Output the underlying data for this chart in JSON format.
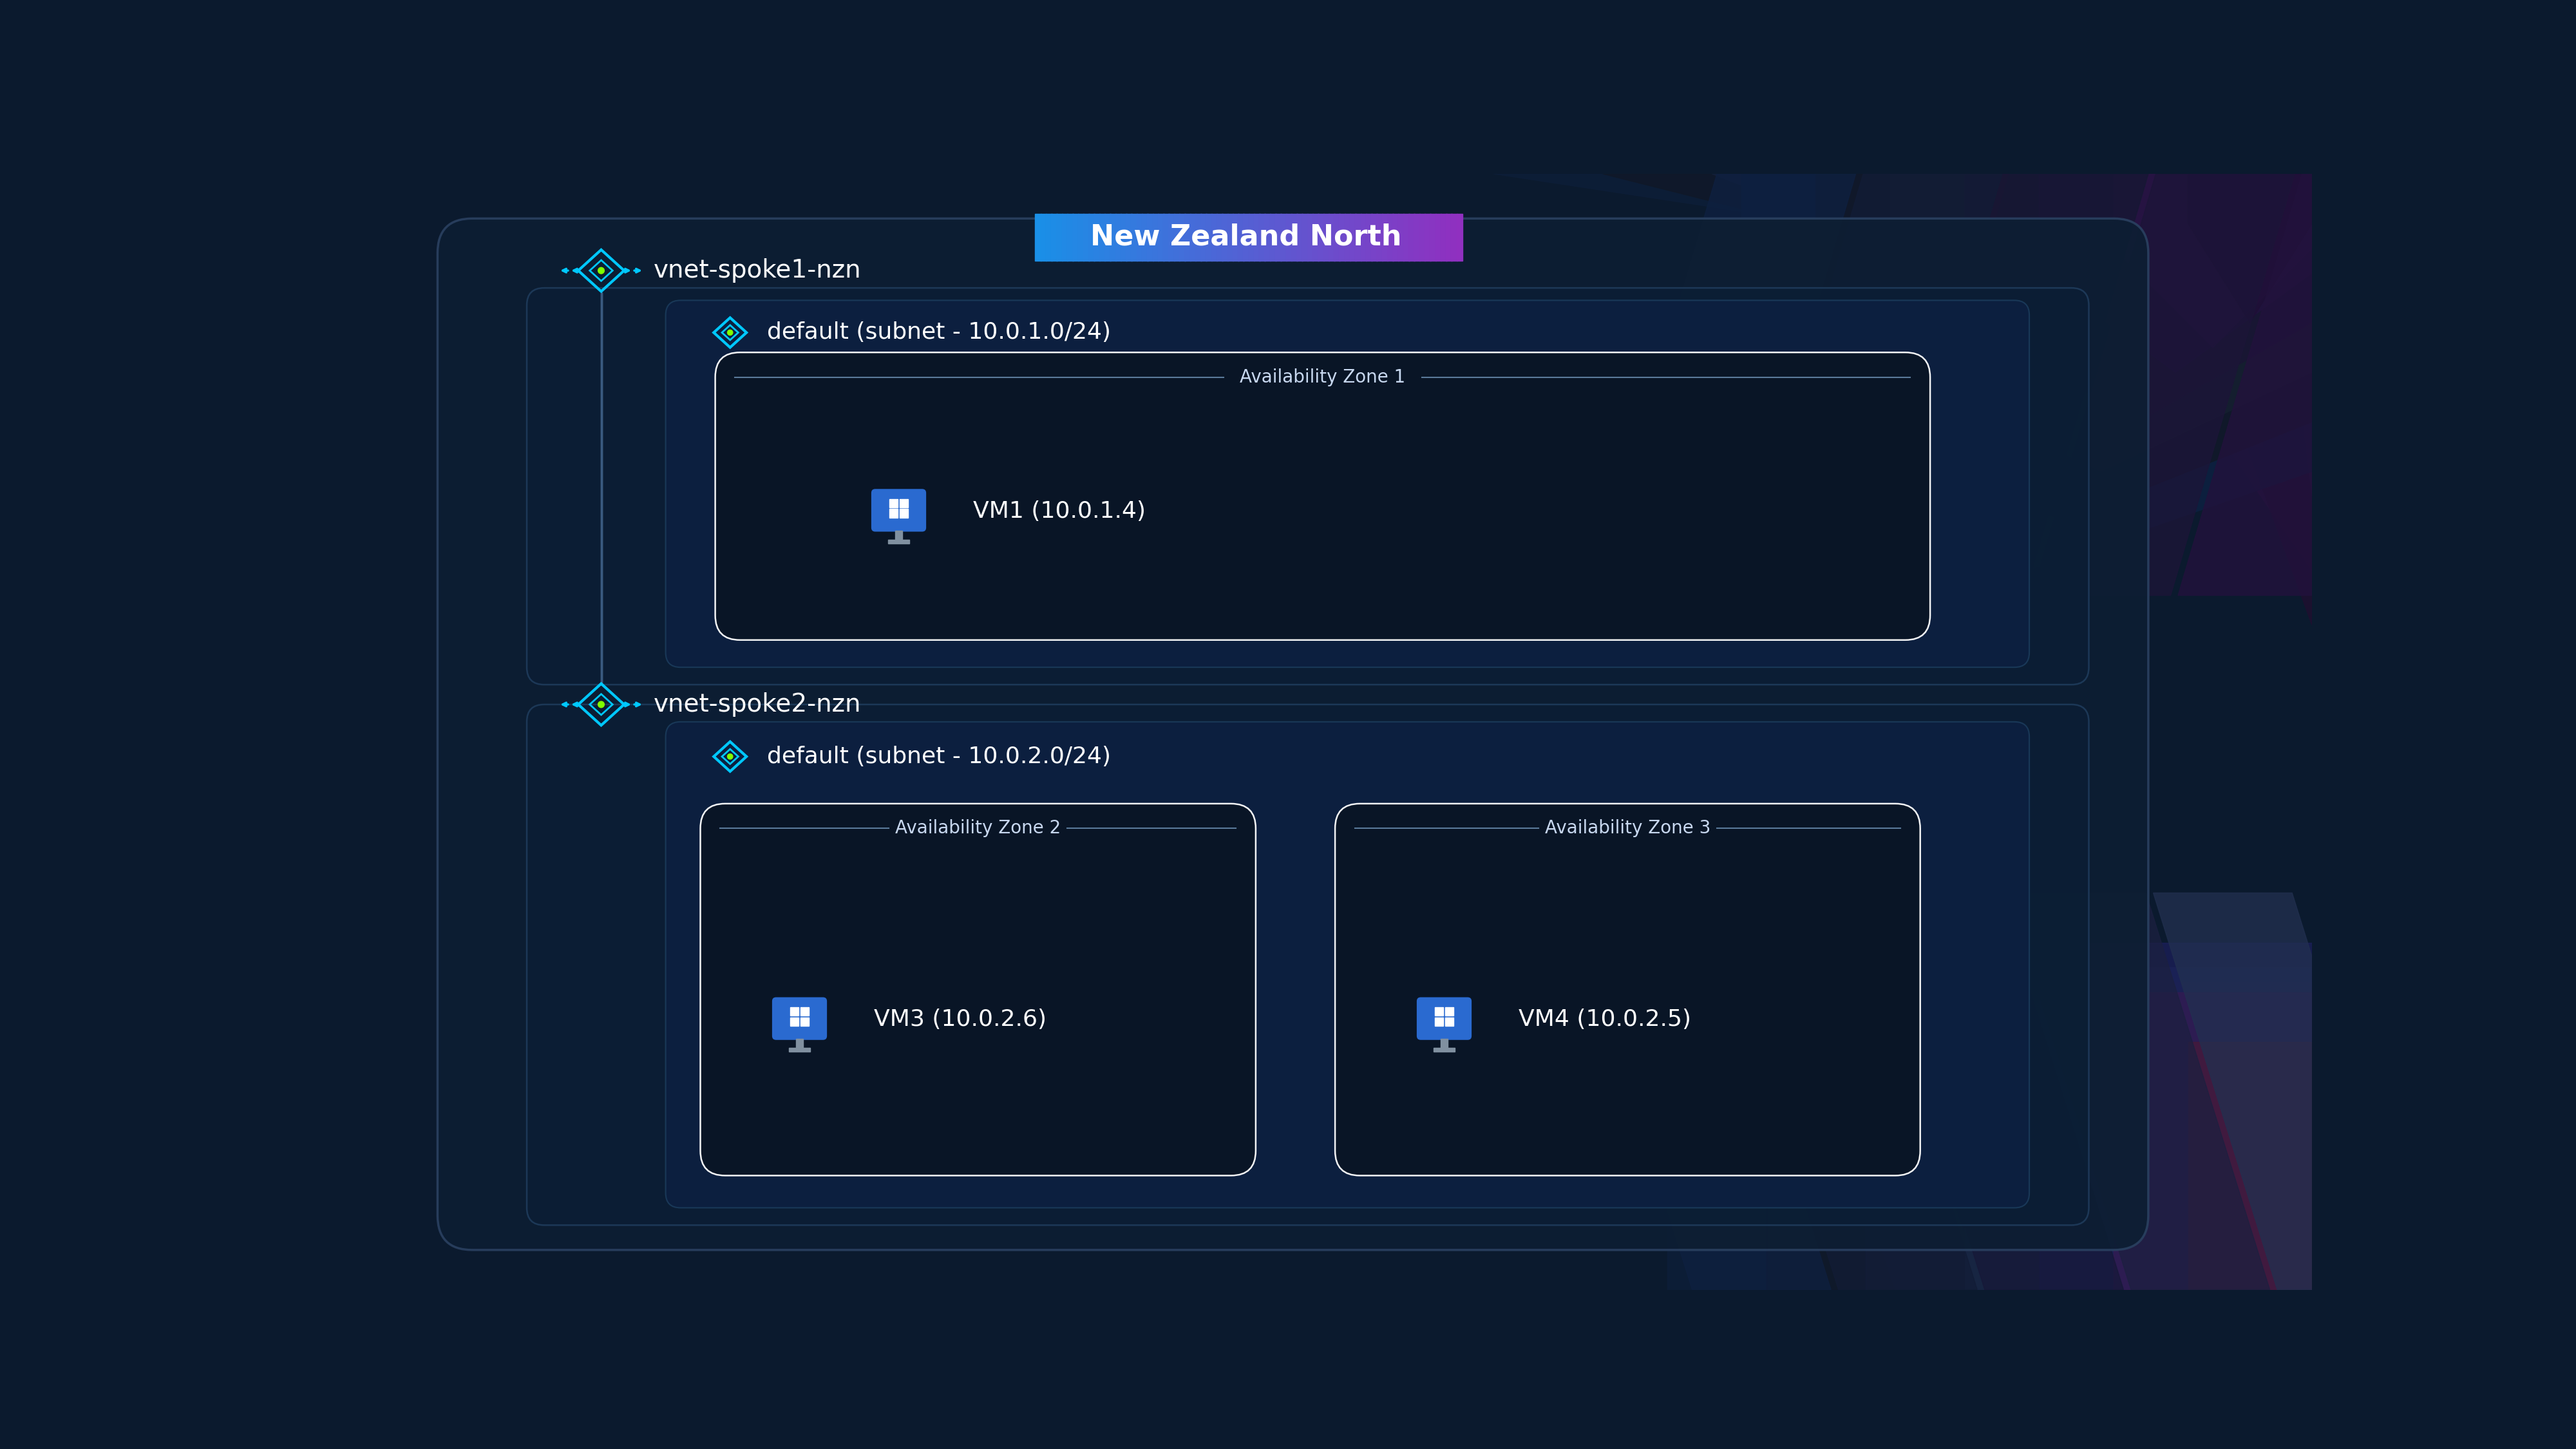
{
  "bg_color": "#0b1a2e",
  "region_title": "New Zealand North",
  "vnet1_label": "vnet-spoke1-nzn",
  "vnet2_label": "vnet-spoke2-nzn",
  "subnet1_label": "default (subnet - 10.0.1.0/24)",
  "subnet2_label": "default (subnet - 10.0.2.0/24)",
  "az1_label": "Availability Zone 1",
  "az2_label": "Availability Zone 2",
  "az3_label": "Availability Zone 3",
  "vm1_label": "VM1 (10.0.1.4)",
  "vm3_label": "VM3 (10.0.2.6)",
  "vm4_label": "VM4 (10.0.2.5)",
  "outer_box_fill": "#0d1e33",
  "outer_box_edge": "#2a4060",
  "vnet_box_fill": "#0b1e35",
  "vnet_box_edge": "#1e3a5a",
  "subnet_box_fill": "#0d2040",
  "subnet_box_edge": "#1a3a5a",
  "az_box_fill": "#091525",
  "az_box_edge": "#ffffff",
  "az_label_color": "#c8d8f0",
  "text_white": "#ffffff",
  "text_light": "#d0e4f8",
  "vnet_icon_cyan": "#00c8ff",
  "vnet_icon_green": "#80ff00",
  "badge_left": "#1a90e8",
  "badge_right": "#9030c0",
  "line_color": "#3a5a80",
  "stripe_colors_top": [
    "#0d1e38",
    "#101828",
    "#14203a",
    "#1a1535",
    "#241240",
    "#2a1540",
    "#1e1030"
  ],
  "stripe_colors_bot": [
    "#0d1e38",
    "#101828",
    "#14203a",
    "#1a1535",
    "#1e2848",
    "#152030",
    "#101828"
  ],
  "monitor_screen": "#2a6ad0",
  "monitor_base": "#8090a0"
}
